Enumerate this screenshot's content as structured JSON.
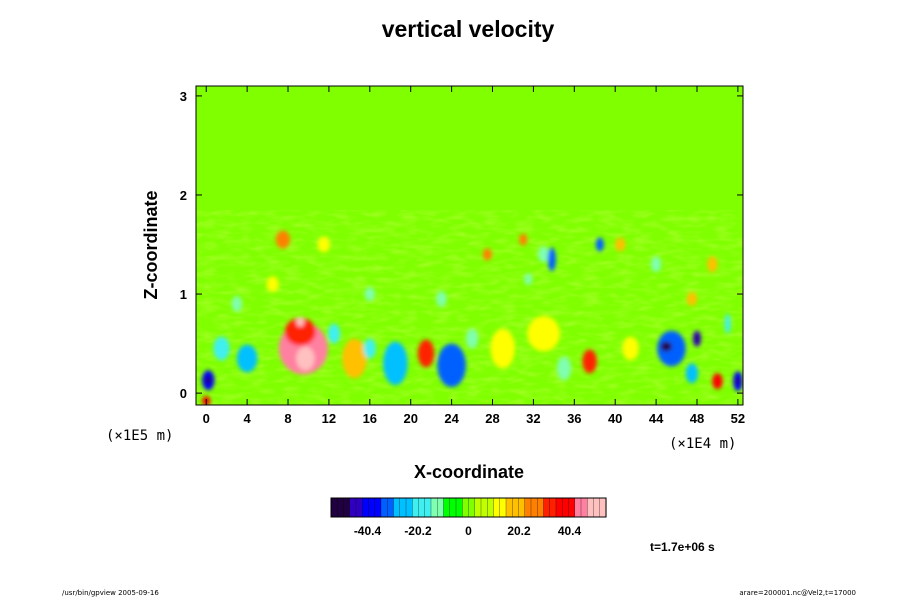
{
  "chart_data": {
    "type": "heatmap",
    "title": "vertical velocity",
    "xlabel": "X-coordinate",
    "ylabel": "Z-coordinate",
    "x_unit": "(×1E4 m)",
    "y_unit": "(×1E5 m)",
    "xlim": [
      -1,
      52.5
    ],
    "ylim": [
      -0.12,
      3.1
    ],
    "x_ticks": [
      "0",
      "4",
      "8",
      "12",
      "16",
      "20",
      "24",
      "28",
      "32",
      "36",
      "40",
      "44",
      "48",
      "52"
    ],
    "y_ticks": [
      "0",
      "1",
      "2",
      "3"
    ],
    "x_tick_values": [
      0,
      4,
      8,
      12,
      16,
      20,
      24,
      28,
      32,
      36,
      40,
      44,
      48,
      52
    ],
    "y_tick_values": [
      0,
      1,
      2,
      3
    ],
    "background_value": 0,
    "features": [
      {
        "x": 9.5,
        "z": 0.45,
        "rx": 2.4,
        "rz": 0.26,
        "v": 45
      },
      {
        "x": 9.2,
        "z": 0.62,
        "rx": 1.5,
        "rz": 0.14,
        "v": 35
      },
      {
        "x": 9.7,
        "z": 0.35,
        "rx": 0.9,
        "rz": 0.12,
        "v": 58
      },
      {
        "x": 9.2,
        "z": 0.72,
        "rx": 0.4,
        "rz": 0.05,
        "v": 55
      },
      {
        "x": 0.2,
        "z": 0.13,
        "rx": 0.6,
        "rz": 0.1,
        "v": -42
      },
      {
        "x": 0.2,
        "z": 0.13,
        "rx": 0.25,
        "rz": 0.04,
        "v": -60
      },
      {
        "x": 0.0,
        "z": -0.08,
        "rx": 0.4,
        "rz": 0.05,
        "v": 40
      },
      {
        "x": 4.0,
        "z": 0.35,
        "rx": 1.0,
        "rz": 0.14,
        "v": -25
      },
      {
        "x": 1.5,
        "z": 0.45,
        "rx": 0.8,
        "rz": 0.12,
        "v": -18
      },
      {
        "x": 14.5,
        "z": 0.35,
        "rx": 1.2,
        "rz": 0.2,
        "v": 20
      },
      {
        "x": 12.5,
        "z": 0.6,
        "rx": 0.6,
        "rz": 0.1,
        "v": -22
      },
      {
        "x": 16.0,
        "z": 0.45,
        "rx": 0.6,
        "rz": 0.1,
        "v": -18
      },
      {
        "x": 18.5,
        "z": 0.3,
        "rx": 1.2,
        "rz": 0.22,
        "v": -28
      },
      {
        "x": 21.5,
        "z": 0.4,
        "rx": 0.8,
        "rz": 0.14,
        "v": 32
      },
      {
        "x": 24.0,
        "z": 0.28,
        "rx": 1.4,
        "rz": 0.22,
        "v": -32
      },
      {
        "x": 26.0,
        "z": 0.55,
        "rx": 0.6,
        "rz": 0.1,
        "v": -15
      },
      {
        "x": 29.0,
        "z": 0.45,
        "rx": 1.2,
        "rz": 0.2,
        "v": 12
      },
      {
        "x": 33.0,
        "z": 0.6,
        "rx": 1.6,
        "rz": 0.18,
        "v": 12
      },
      {
        "x": 37.5,
        "z": 0.32,
        "rx": 0.7,
        "rz": 0.12,
        "v": 32
      },
      {
        "x": 35.0,
        "z": 0.25,
        "rx": 0.7,
        "rz": 0.12,
        "v": -16
      },
      {
        "x": 41.5,
        "z": 0.45,
        "rx": 0.8,
        "rz": 0.12,
        "v": 14
      },
      {
        "x": 45.5,
        "z": 0.45,
        "rx": 1.4,
        "rz": 0.18,
        "v": -35
      },
      {
        "x": 45.0,
        "z": 0.47,
        "rx": 0.55,
        "rz": 0.05,
        "v": -62
      },
      {
        "x": 48.0,
        "z": 0.55,
        "rx": 0.4,
        "rz": 0.08,
        "v": -45
      },
      {
        "x": 48.0,
        "z": 0.55,
        "rx": 0.15,
        "rz": 0.03,
        "v": -62
      },
      {
        "x": 47.5,
        "z": 0.2,
        "rx": 0.6,
        "rz": 0.1,
        "v": -25
      },
      {
        "x": 50.0,
        "z": 0.12,
        "rx": 0.5,
        "rz": 0.08,
        "v": 38
      },
      {
        "x": 52.0,
        "z": 0.12,
        "rx": 0.45,
        "rz": 0.1,
        "v": -42
      },
      {
        "x": 52.0,
        "z": 0.12,
        "rx": 0.18,
        "rz": 0.04,
        "v": -62
      },
      {
        "x": 7.5,
        "z": 1.55,
        "rx": 0.7,
        "rz": 0.09,
        "v": 24
      },
      {
        "x": 6.5,
        "z": 1.1,
        "rx": 0.6,
        "rz": 0.08,
        "v": 14
      },
      {
        "x": 3.0,
        "z": 0.9,
        "rx": 0.5,
        "rz": 0.08,
        "v": -12
      },
      {
        "x": 11.5,
        "z": 1.5,
        "rx": 0.6,
        "rz": 0.08,
        "v": 12
      },
      {
        "x": 16.0,
        "z": 1.0,
        "rx": 0.5,
        "rz": 0.07,
        "v": -14
      },
      {
        "x": 23.0,
        "z": 0.95,
        "rx": 0.5,
        "rz": 0.08,
        "v": -12
      },
      {
        "x": 27.5,
        "z": 1.4,
        "rx": 0.45,
        "rz": 0.06,
        "v": 24
      },
      {
        "x": 31.0,
        "z": 1.55,
        "rx": 0.4,
        "rz": 0.06,
        "v": 26
      },
      {
        "x": 33.0,
        "z": 1.4,
        "rx": 0.55,
        "rz": 0.08,
        "v": -14
      },
      {
        "x": 33.8,
        "z": 1.35,
        "rx": 0.4,
        "rz": 0.12,
        "v": -30
      },
      {
        "x": 31.5,
        "z": 1.15,
        "rx": 0.4,
        "rz": 0.06,
        "v": -14
      },
      {
        "x": 38.5,
        "z": 1.5,
        "rx": 0.4,
        "rz": 0.07,
        "v": -30
      },
      {
        "x": 40.5,
        "z": 1.5,
        "rx": 0.5,
        "rz": 0.07,
        "v": 22
      },
      {
        "x": 44.0,
        "z": 1.3,
        "rx": 0.5,
        "rz": 0.08,
        "v": -16
      },
      {
        "x": 49.5,
        "z": 1.3,
        "rx": 0.5,
        "rz": 0.08,
        "v": 20
      },
      {
        "x": 47.5,
        "z": 0.95,
        "rx": 0.5,
        "rz": 0.07,
        "v": 20
      },
      {
        "x": 51.0,
        "z": 0.7,
        "rx": 0.3,
        "rz": 0.1,
        "v": -18
      }
    ],
    "colorbar": {
      "vmin": -55,
      "vmax": 55,
      "ticks": [
        "-40.4",
        "-20.2",
        "0",
        "20.2",
        "40.4"
      ],
      "tick_values": [
        -40.4,
        -20.2,
        0,
        20.2,
        40.4
      ],
      "colors": [
        "#200040",
        "#3000c0",
        "#0000ff",
        "#0060ff",
        "#00c0ff",
        "#40f0f0",
        "#80ffb0",
        "#00ff00",
        "#80ff00",
        "#c0ff00",
        "#ffff00",
        "#ffc000",
        "#ff8000",
        "#ff2000",
        "#ff0000",
        "#ff80a0",
        "#ffc0c0"
      ]
    },
    "time_label": "t=1.7e+06 s"
  },
  "footer": {
    "left": "/usr/bin/gpview 2005-09-16",
    "right": "arare=200001.nc@Vel2,t=17000"
  }
}
